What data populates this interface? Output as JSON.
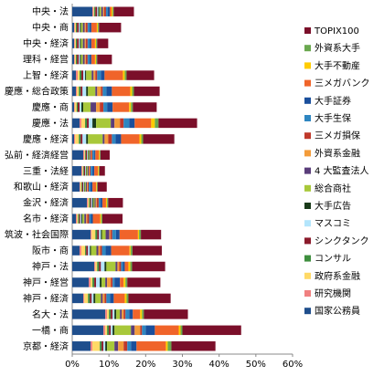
{
  "chart_data": {
    "type": "bar",
    "orientation": "horizontal",
    "stacked": true,
    "grid": false,
    "legend_position": "right",
    "xlim": [
      0,
      60
    ],
    "x_ticks": [
      "0%",
      "10%",
      "20%",
      "30%",
      "40%",
      "50%",
      "60%"
    ],
    "x_tick_values": [
      0,
      10,
      20,
      30,
      40,
      50,
      60
    ],
    "categories": [
      "中央・法",
      "中央・商",
      "中央・経済",
      "理科・経営",
      "上智・経済",
      "慶應・総合政策",
      "慶應・商",
      "慶應・法",
      "慶應・経済",
      "弘前・経済経営",
      "三重・法経",
      "和歌山・経済",
      "金沢・経済",
      "名市・経済",
      "筑波・社会国際",
      "阪市・商",
      "神戸・法",
      "神戸・経営",
      "神戸・経済",
      "名大・法",
      "一橋・商",
      "京都・経済"
    ],
    "series": [
      {
        "name": "国家公務員",
        "color": "#1f4e8c",
        "values": [
          5.5,
          0.5,
          0.5,
          0.5,
          1.0,
          1.0,
          0.5,
          2.0,
          0.5,
          3.0,
          2.5,
          2.0,
          4.0,
          1.0,
          5.0,
          2.0,
          6.0,
          4.5,
          3.0,
          9.0,
          8.5,
          5.0
        ]
      },
      {
        "name": "研究機関",
        "color": "#f08080",
        "values": [
          0.3,
          0.2,
          0.2,
          0.2,
          0.5,
          0.3,
          0.2,
          0.5,
          0.3,
          0.3,
          0.3,
          0.2,
          0.3,
          0.3,
          0.3,
          0.5,
          0.3,
          0.5,
          0.3,
          0.5,
          0.5,
          0.5
        ]
      },
      {
        "name": "政府系金融",
        "color": "#ffd966",
        "values": [
          0.2,
          0.3,
          0.3,
          0.3,
          0.5,
          0.5,
          0.5,
          1.0,
          1.0,
          0.2,
          0.2,
          0.3,
          0.3,
          0.3,
          1.0,
          1.0,
          0.5,
          0.5,
          1.0,
          0.5,
          0.5,
          2.0
        ]
      },
      {
        "name": "コンサル",
        "color": "#3e8e3e",
        "values": [
          0.3,
          0.3,
          0.3,
          0.3,
          0.5,
          0.5,
          0.3,
          0.5,
          0.5,
          0.2,
          0.2,
          0.2,
          0.3,
          0.3,
          0.5,
          0.3,
          0.5,
          0.5,
          0.5,
          0.5,
          0.5,
          0.5
        ]
      },
      {
        "name": "シンクタンク",
        "color": "#8b1a2b",
        "values": [
          0.5,
          0.5,
          0.5,
          0.5,
          0.5,
          0.5,
          0.5,
          0.5,
          0.5,
          0.3,
          0.3,
          0.3,
          0.3,
          0.3,
          0.5,
          0.5,
          0.5,
          0.5,
          0.5,
          0.5,
          0.5,
          0.5
        ]
      },
      {
        "name": "マスコミ",
        "color": "#b3e5fc",
        "values": [
          0.3,
          0.3,
          0.3,
          0.3,
          0.5,
          1.0,
          0.5,
          1.0,
          1.0,
          0.2,
          0.2,
          0.2,
          0.3,
          0.3,
          0.5,
          0.5,
          1.0,
          1.0,
          0.5,
          0.5,
          0.5,
          0.5
        ]
      },
      {
        "name": "大手広告",
        "color": "#1a3a1a",
        "values": [
          0.3,
          0.3,
          0.3,
          0.3,
          0.3,
          0.5,
          0.5,
          1.0,
          0.5,
          0.2,
          0.2,
          0.2,
          0.3,
          0.3,
          0.3,
          0.3,
          0.5,
          0.5,
          0.5,
          0.5,
          0.5,
          0.5
        ]
      },
      {
        "name": "総合商社",
        "color": "#a8c83a",
        "values": [
          0.5,
          0.5,
          0.5,
          0.5,
          1.5,
          2.0,
          2.0,
          4.0,
          4.0,
          0.3,
          0.3,
          0.3,
          0.3,
          0.5,
          1.0,
          1.5,
          2.5,
          1.0,
          1.5,
          1.0,
          4.5,
          2.0
        ]
      },
      {
        "name": "4 大監査法人",
        "color": "#5a3d7a",
        "values": [
          0.5,
          0.5,
          0.5,
          0.5,
          0.5,
          0.5,
          1.5,
          1.0,
          0.5,
          0.3,
          0.3,
          0.3,
          0.3,
          0.5,
          1.0,
          0.5,
          0.5,
          0.5,
          0.5,
          0.5,
          1.0,
          1.0
        ]
      },
      {
        "name": "外資系金融",
        "color": "#f39c3a",
        "values": [
          0.3,
          0.3,
          0.3,
          0.3,
          0.5,
          1.0,
          1.0,
          1.5,
          1.0,
          0.2,
          0.2,
          0.2,
          0.3,
          0.3,
          0.3,
          0.5,
          0.5,
          1.0,
          0.5,
          0.5,
          1.5,
          1.5
        ]
      },
      {
        "name": "三メガ損保",
        "color": "#c0392b",
        "values": [
          0.5,
          0.5,
          0.5,
          0.5,
          0.5,
          0.5,
          1.0,
          1.0,
          1.0,
          0.3,
          0.3,
          0.3,
          0.5,
          0.5,
          0.5,
          0.5,
          0.5,
          0.5,
          0.5,
          0.5,
          0.5,
          1.0
        ]
      },
      {
        "name": "大手生保",
        "color": "#2e86c1",
        "values": [
          0.5,
          0.5,
          0.5,
          0.5,
          1.0,
          1.0,
          1.0,
          1.5,
          1.0,
          0.5,
          0.5,
          0.5,
          0.5,
          0.5,
          1.0,
          1.0,
          0.5,
          0.5,
          1.0,
          1.0,
          1.0,
          1.0
        ]
      },
      {
        "name": "大手証券",
        "color": "#1a4f9c",
        "values": [
          0.5,
          0.5,
          0.5,
          0.5,
          1.0,
          1.5,
          1.5,
          1.5,
          1.5,
          0.3,
          0.5,
          0.5,
          0.5,
          0.5,
          1.0,
          1.5,
          0.5,
          1.5,
          1.0,
          1.0,
          2.5,
          1.5
        ]
      },
      {
        "name": "三メガバンク",
        "color": "#f0642a",
        "values": [
          0.5,
          1.5,
          1.0,
          1.0,
          5.0,
          5.0,
          4.5,
          4.5,
          5.0,
          1.0,
          1.0,
          1.0,
          1.0,
          2.0,
          5.0,
          5.0,
          1.0,
          1.0,
          3.0,
          2.0,
          6.5,
          8.0
        ]
      },
      {
        "name": "大手不動産",
        "color": "#ffcc00",
        "values": [
          0.3,
          0.3,
          0.3,
          0.3,
          0.5,
          0.5,
          0.5,
          1.0,
          0.5,
          0.2,
          0.2,
          0.2,
          0.3,
          0.3,
          0.3,
          0.3,
          0.5,
          0.5,
          0.5,
          0.5,
          0.5,
          0.5
        ]
      },
      {
        "name": "外資系大手",
        "color": "#6aa84f",
        "values": [
          0.3,
          0.3,
          0.3,
          0.3,
          0.5,
          0.5,
          0.5,
          1.0,
          0.5,
          0.2,
          0.2,
          0.2,
          0.3,
          0.3,
          0.5,
          0.5,
          0.5,
          0.5,
          0.5,
          0.5,
          0.5,
          1.0
        ]
      },
      {
        "name": "TOPIX100",
        "color": "#7b0f2a",
        "values": [
          5.5,
          6.0,
          3.0,
          4.0,
          7.5,
          7.0,
          6.5,
          10.5,
          8.5,
          2.5,
          1.5,
          2.5,
          4.0,
          5.5,
          5.5,
          8.0,
          9.0,
          9.0,
          11.5,
          12.0,
          16.0,
          12.0
        ]
      }
    ]
  }
}
